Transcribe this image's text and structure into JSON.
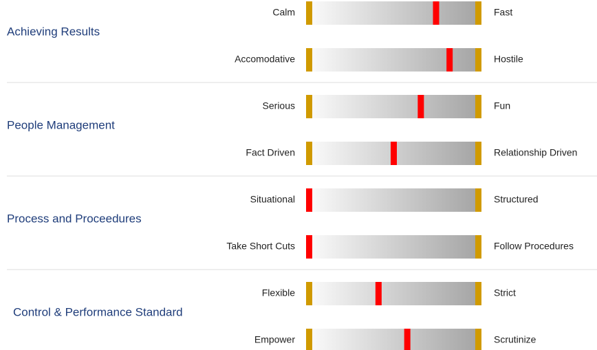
{
  "range": [
    0,
    100
  ],
  "sections": [
    {
      "title": "Achieving Results",
      "scales": [
        {
          "left": "Calm",
          "right": "Fast",
          "value": 75
        },
        {
          "left": "Accomodative",
          "right": "Hostile",
          "value": 83
        }
      ]
    },
    {
      "title": "People Management",
      "scales": [
        {
          "left": "Serious",
          "right": "Fun",
          "value": 66
        },
        {
          "left": "Fact Driven",
          "right": "Relationship Driven",
          "value": 50
        }
      ]
    },
    {
      "title": "Process and Proceedures",
      "scales": [
        {
          "left": "Situational",
          "right": "Structured",
          "value": 0
        },
        {
          "left": "Take Short Cuts",
          "right": "Follow Procedures",
          "value": 0
        }
      ]
    },
    {
      "title": "Control & Performance Standard",
      "scales": [
        {
          "left": "Flexible",
          "right": "Strict",
          "value": 41
        },
        {
          "left": "Empower",
          "right": "Scrutinize",
          "value": 58
        }
      ]
    }
  ]
}
